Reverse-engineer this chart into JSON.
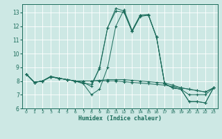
{
  "title": "",
  "xlabel": "Humidex (Indice chaleur)",
  "bg_color": "#cde8e4",
  "line_color": "#1a6b5a",
  "grid_color": "#ffffff",
  "xlim": [
    -0.5,
    23.5
  ],
  "ylim": [
    6,
    13.6
  ],
  "yticks": [
    6,
    7,
    8,
    9,
    10,
    11,
    12,
    13
  ],
  "xticks": [
    0,
    1,
    2,
    3,
    4,
    5,
    6,
    7,
    8,
    9,
    10,
    11,
    12,
    13,
    14,
    15,
    16,
    17,
    18,
    19,
    20,
    21,
    22,
    23
  ],
  "lines": [
    {
      "x": [
        0,
        1,
        2,
        3,
        4,
        5,
        6,
        7,
        8,
        9,
        10,
        11,
        12,
        13,
        14,
        15,
        16,
        17,
        18,
        19,
        20,
        21,
        22,
        23
      ],
      "y": [
        8.5,
        7.9,
        8.0,
        8.3,
        8.2,
        8.1,
        8.0,
        7.9,
        7.6,
        9.0,
        11.9,
        13.3,
        13.1,
        11.6,
        12.8,
        12.8,
        11.2,
        7.8,
        7.5,
        7.4,
        6.5,
        6.5,
        6.4,
        7.5
      ]
    },
    {
      "x": [
        0,
        1,
        2,
        3,
        4,
        5,
        6,
        7,
        8,
        9,
        10,
        11,
        12,
        13,
        14,
        15,
        16,
        17,
        18,
        19,
        20,
        21,
        22,
        23
      ],
      "y": [
        8.5,
        7.9,
        8.0,
        8.3,
        8.2,
        8.1,
        8.0,
        7.85,
        7.75,
        8.9,
        11.9,
        13.1,
        13.0,
        11.6,
        12.7,
        12.8,
        11.2,
        7.8,
        7.5,
        7.4,
        7.0,
        7.0,
        7.0,
        7.5
      ]
    },
    {
      "x": [
        0,
        1,
        2,
        3,
        4,
        5,
        6,
        7,
        8,
        9,
        10,
        11,
        12,
        13,
        14,
        15,
        16,
        17,
        18,
        19,
        20,
        21,
        22,
        23
      ],
      "y": [
        8.5,
        7.9,
        8.0,
        8.35,
        8.2,
        8.1,
        8.0,
        7.8,
        7.0,
        7.4,
        9.0,
        12.0,
        13.2,
        11.7,
        12.8,
        12.85,
        11.2,
        7.8,
        7.5,
        7.4,
        6.5,
        6.5,
        6.4,
        7.5
      ]
    },
    {
      "x": [
        0,
        1,
        2,
        3,
        4,
        5,
        6,
        7,
        8,
        9,
        10,
        11,
        12,
        13,
        14,
        15,
        16,
        17,
        18,
        19,
        20,
        21,
        22,
        23
      ],
      "y": [
        8.5,
        7.9,
        8.0,
        8.3,
        8.2,
        8.1,
        8.0,
        8.0,
        8.0,
        8.05,
        8.1,
        8.1,
        8.1,
        8.05,
        8.0,
        7.95,
        7.9,
        7.85,
        7.7,
        7.5,
        7.4,
        7.3,
        7.2,
        7.5
      ]
    },
    {
      "x": [
        0,
        1,
        2,
        3,
        4,
        5,
        6,
        7,
        8,
        9,
        10,
        11,
        12,
        13,
        14,
        15,
        16,
        17,
        18,
        19,
        20,
        21,
        22,
        23
      ],
      "y": [
        8.5,
        7.9,
        8.0,
        8.3,
        8.2,
        8.1,
        8.0,
        8.0,
        8.0,
        8.0,
        8.0,
        8.0,
        7.95,
        7.9,
        7.85,
        7.8,
        7.75,
        7.7,
        7.6,
        7.5,
        7.4,
        7.3,
        7.2,
        7.5
      ]
    }
  ]
}
